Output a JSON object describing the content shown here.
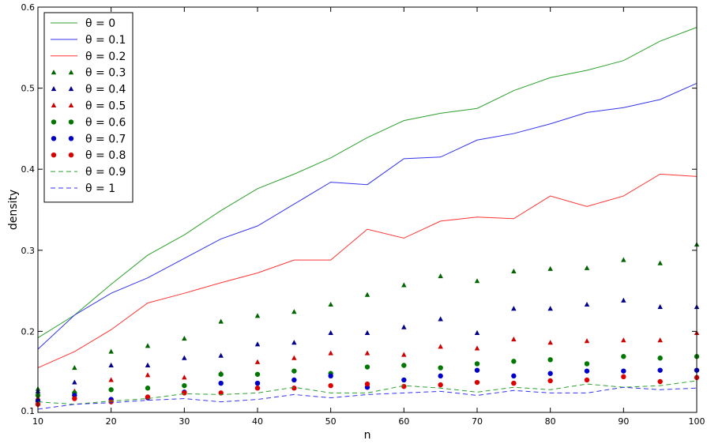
{
  "chart_data": {
    "type": "line",
    "title": "",
    "xlabel": "n",
    "ylabel": "density",
    "xlim": [
      10,
      100
    ],
    "ylim": [
      0.1,
      0.6
    ],
    "grid": false,
    "legend_position": "top-left",
    "x_ticks": [
      10,
      20,
      30,
      40,
      50,
      60,
      70,
      80,
      90,
      100
    ],
    "y_ticks": [
      0.1,
      0.2,
      0.3,
      0.4,
      0.5,
      0.6
    ],
    "x_tick_labels": [
      "10",
      "20",
      "30",
      "40",
      "50",
      "60",
      "70",
      "80",
      "90",
      "100"
    ],
    "y_tick_labels": [
      "0.1",
      "0.2",
      "0.3",
      "0.4",
      "0.5",
      "0.6"
    ],
    "x": [
      10,
      15,
      20,
      25,
      30,
      35,
      40,
      45,
      50,
      55,
      60,
      65,
      70,
      75,
      80,
      85,
      90,
      95,
      100
    ],
    "series": [
      {
        "name": "θ = 0",
        "style": "solid",
        "marker": "none",
        "color": "#2ca02c",
        "values": [
          0.192,
          0.22,
          0.258,
          0.294,
          0.319,
          0.349,
          0.376,
          0.394,
          0.414,
          0.439,
          0.46,
          0.469,
          0.475,
          0.497,
          0.513,
          0.522,
          0.534,
          0.558,
          0.575
        ]
      },
      {
        "name": "θ = 0.1",
        "style": "solid",
        "marker": "none",
        "color": "#3333ee",
        "values": [
          0.178,
          0.22,
          0.247,
          0.266,
          0.29,
          0.314,
          0.33,
          0.357,
          0.384,
          0.381,
          0.413,
          0.415,
          0.436,
          0.444,
          0.456,
          0.47,
          0.476,
          0.486,
          0.506
        ]
      },
      {
        "name": "θ = 0.2",
        "style": "solid",
        "marker": "none",
        "color": "#ff3333",
        "values": [
          0.155,
          0.175,
          0.202,
          0.235,
          0.247,
          0.26,
          0.272,
          0.288,
          0.288,
          0.326,
          0.315,
          0.336,
          0.341,
          0.339,
          0.367,
          0.354,
          0.367,
          0.394,
          0.391
        ]
      },
      {
        "name": "θ = 0.3",
        "style": "none",
        "marker": "triangle",
        "color": "#006400",
        "values": [
          0.129,
          0.155,
          0.175,
          0.182,
          0.191,
          0.212,
          0.219,
          0.224,
          0.233,
          0.245,
          0.257,
          0.268,
          0.262,
          0.274,
          0.277,
          0.278,
          0.288,
          0.284,
          0.307
        ]
      },
      {
        "name": "θ = 0.4",
        "style": "none",
        "marker": "triangle",
        "color": "#00008b",
        "values": [
          0.126,
          0.137,
          0.158,
          0.158,
          0.167,
          0.17,
          0.184,
          0.186,
          0.198,
          0.198,
          0.205,
          0.215,
          0.198,
          0.228,
          0.228,
          0.233,
          0.238,
          0.23,
          0.23
        ]
      },
      {
        "name": "θ = 0.5",
        "style": "none",
        "marker": "triangle",
        "color": "#cc0000",
        "values": [
          0.118,
          0.126,
          0.14,
          0.146,
          0.143,
          0.148,
          0.162,
          0.167,
          0.173,
          0.173,
          0.171,
          0.181,
          0.179,
          0.19,
          0.186,
          0.188,
          0.189,
          0.189,
          0.198
        ]
      },
      {
        "name": "θ = 0.6",
        "style": "none",
        "marker": "circle",
        "color": "#007700",
        "values": [
          0.121,
          0.124,
          0.128,
          0.13,
          0.133,
          0.147,
          0.147,
          0.151,
          0.148,
          0.156,
          0.158,
          0.155,
          0.16,
          0.163,
          0.165,
          0.16,
          0.169,
          0.167,
          0.169
        ]
      },
      {
        "name": "θ = 0.7",
        "style": "none",
        "marker": "circle",
        "color": "#0000cc",
        "values": [
          0.114,
          0.121,
          0.116,
          0.118,
          0.125,
          0.136,
          0.136,
          0.14,
          0.145,
          0.131,
          0.14,
          0.145,
          0.152,
          0.145,
          0.148,
          0.151,
          0.151,
          0.152,
          0.152
        ]
      },
      {
        "name": "θ = 0.8",
        "style": "none",
        "marker": "circle",
        "color": "#dd0000",
        "values": [
          0.11,
          0.117,
          0.113,
          0.119,
          0.124,
          0.124,
          0.13,
          0.13,
          0.133,
          0.135,
          0.132,
          0.134,
          0.137,
          0.136,
          0.139,
          0.14,
          0.144,
          0.138,
          0.143
        ]
      },
      {
        "name": "θ = 0.9",
        "style": "dashed",
        "marker": "none",
        "color": "#2ca02c",
        "values": [
          0.113,
          0.11,
          0.114,
          0.117,
          0.123,
          0.122,
          0.124,
          0.131,
          0.124,
          0.124,
          0.133,
          0.13,
          0.125,
          0.131,
          0.128,
          0.135,
          0.131,
          0.133,
          0.139
        ]
      },
      {
        "name": "θ = 1",
        "style": "dashed",
        "marker": "none",
        "color": "#3333ee",
        "values": [
          0.104,
          0.11,
          0.112,
          0.115,
          0.117,
          0.113,
          0.116,
          0.122,
          0.118,
          0.122,
          0.124,
          0.126,
          0.121,
          0.127,
          0.124,
          0.124,
          0.131,
          0.128,
          0.13
        ]
      }
    ]
  }
}
